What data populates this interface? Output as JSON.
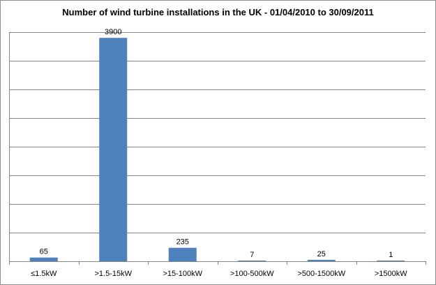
{
  "chart_data": {
    "type": "bar",
    "title": "Number of wind turbine installations in the UK - 01/04/2010  to 30/09/2011",
    "categories": [
      "≤1.5kW",
      ">1.5-15kW",
      ">15-100kW",
      ">100-500kW",
      ">500-1500kW",
      ">1500kW"
    ],
    "values": [
      65,
      3900,
      235,
      7,
      25,
      1
    ],
    "data_labels": [
      "65",
      "3900",
      "235",
      "7",
      "25",
      "1"
    ],
    "xlabel": "",
    "ylabel": "",
    "ylim": [
      0,
      4000
    ],
    "gridlines": true,
    "legend": false,
    "bar_color": "#4f81bd",
    "grid_color": "#868686"
  }
}
